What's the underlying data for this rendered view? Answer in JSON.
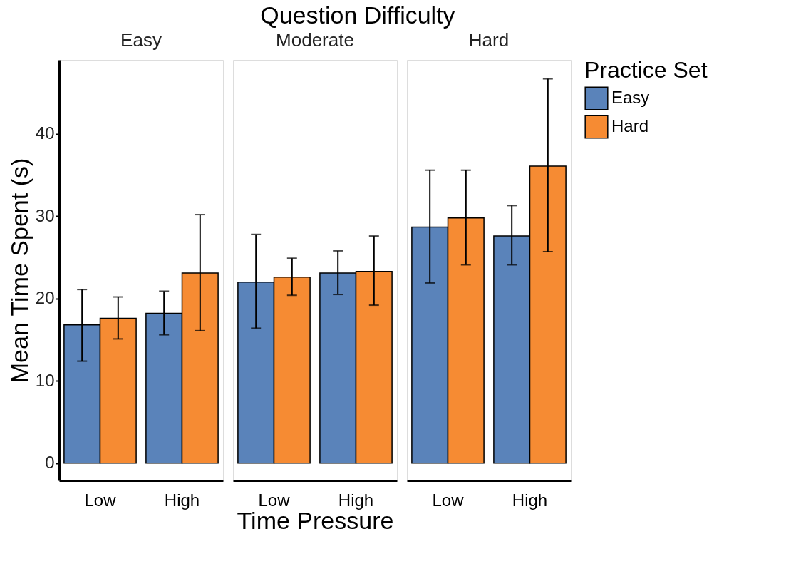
{
  "chart_data": [
    {
      "type": "bar",
      "title": "Easy",
      "ylabel": "Mean Time Spent (s)",
      "legend_title": "Practice Set",
      "categories": [
        "Low",
        "High"
      ],
      "ylim": [
        -2.1,
        49
      ],
      "yticks": [
        0,
        10,
        20,
        30,
        40
      ],
      "legend": "right",
      "series": [
        {
          "name": "Easy",
          "color": "#5a83ba",
          "values": [
            16.8,
            18.2
          ],
          "errors": [
            [
              12.4,
              21.1
            ],
            [
              15.6,
              20.9
            ]
          ]
        },
        {
          "name": "Hard",
          "color": "#f68b33",
          "values": [
            17.6,
            23.1
          ],
          "errors": [
            [
              15.1,
              20.2
            ],
            [
              16.1,
              30.2
            ]
          ]
        }
      ]
    },
    {
      "type": "bar",
      "title": "Moderate",
      "xlabel": "Time Pressure",
      "annotations": [
        "Question Difficulty"
      ],
      "categories": [
        "Low",
        "High"
      ],
      "ylim": [
        -2.1,
        49
      ],
      "yticks": [
        0,
        10,
        20,
        30,
        40
      ],
      "tick_labels": "x",
      "series": [
        {
          "color": "#5a83ba",
          "values": [
            22.0,
            23.1
          ],
          "errors": [
            [
              16.4,
              27.8
            ],
            [
              20.5,
              25.8
            ]
          ]
        },
        {
          "color": "#f68b33",
          "values": [
            22.6,
            23.3
          ],
          "errors": [
            [
              20.4,
              24.9
            ],
            [
              19.2,
              27.6
            ]
          ]
        }
      ]
    },
    {
      "type": "bar",
      "title": "Hard",
      "categories": [
        "Low",
        "High"
      ],
      "ylim": [
        -2.1,
        49
      ],
      "yticks": [
        0,
        10,
        20,
        30,
        40
      ],
      "tick_labels": "x",
      "series": [
        {
          "color": "#5a83ba",
          "values": [
            28.7,
            27.6
          ],
          "errors": [
            [
              21.9,
              35.6
            ],
            [
              24.1,
              31.3
            ]
          ]
        },
        {
          "color": "#f68b33",
          "values": [
            29.8,
            36.1
          ],
          "errors": [
            [
              24.1,
              35.6
            ],
            [
              25.7,
              46.7
            ]
          ]
        }
      ]
    }
  ]
}
